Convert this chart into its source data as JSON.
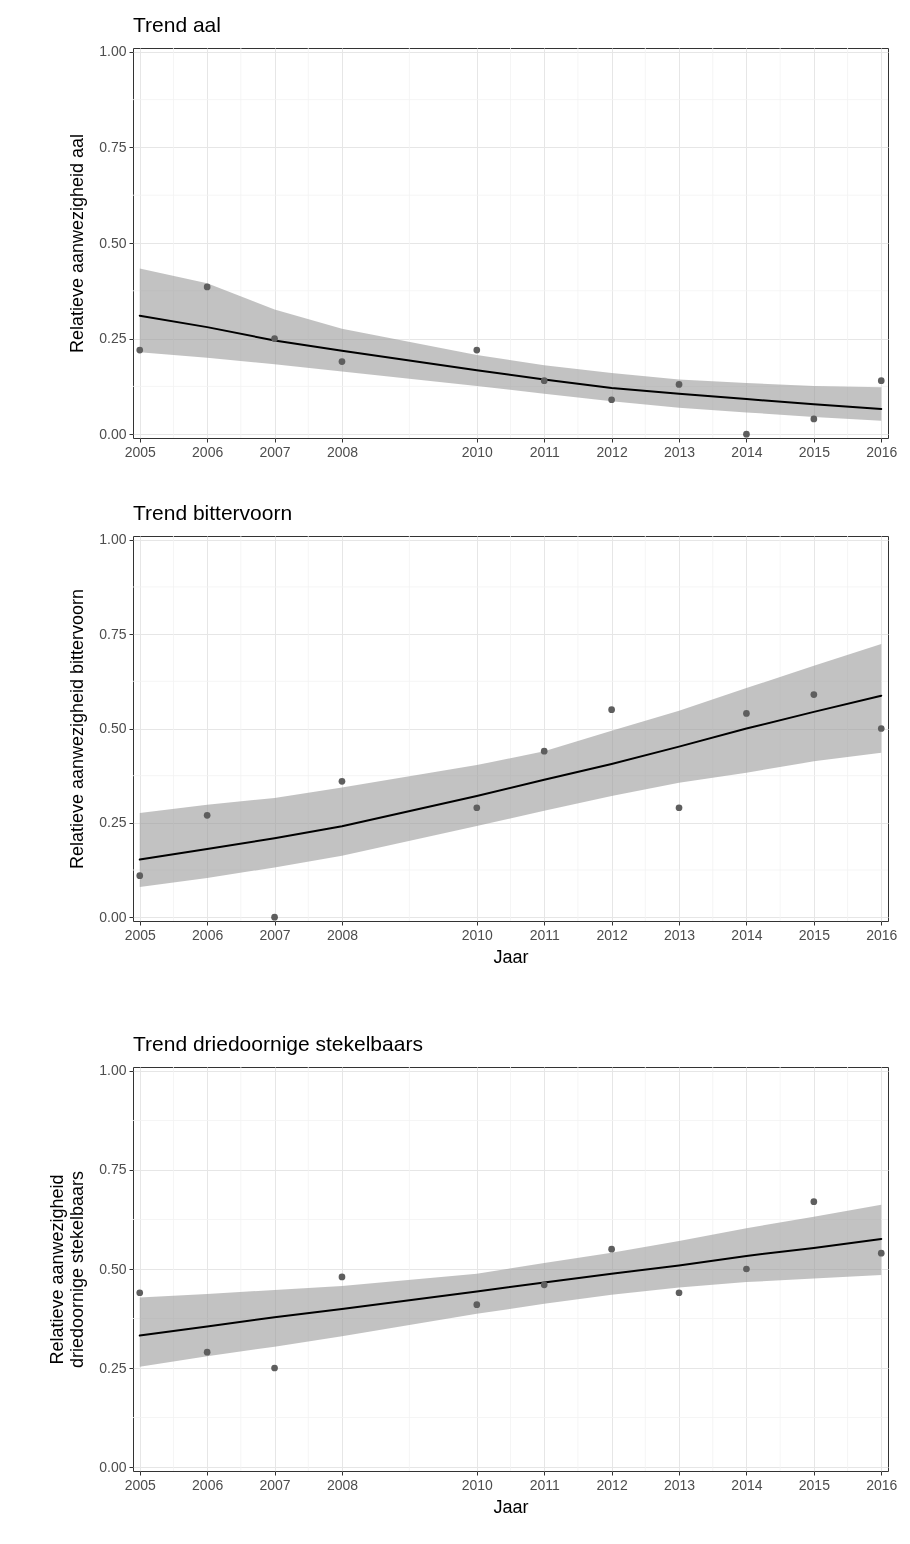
{
  "chart_data": [
    {
      "type": "scatter",
      "title": "Trend aal",
      "ylabel": "Relatieve aanwezigheid aal",
      "x": [
        2005,
        2006,
        2007,
        2008,
        2010,
        2011,
        2012,
        2013,
        2014,
        2015,
        2016
      ],
      "series": [
        {
          "type": "line",
          "color": "#000000",
          "line_style": "solid",
          "values": [
            0.31,
            0.28,
            0.245,
            0.218,
            0.167,
            0.143,
            0.121,
            0.106,
            0.092,
            0.078,
            0.066
          ],
          "lower": [
            0.214,
            0.2,
            0.183,
            0.164,
            0.126,
            0.106,
            0.086,
            0.069,
            0.057,
            0.045,
            0.035
          ],
          "upper": [
            0.433,
            0.395,
            0.326,
            0.276,
            0.207,
            0.18,
            0.16,
            0.143,
            0.134,
            0.126,
            0.123
          ]
        },
        {
          "color": "#5e5e5e",
          "marker": "circle",
          "values": [
            0.22,
            0.385,
            0.25,
            0.19,
            0.22,
            0.14,
            0.09,
            0.13,
            0.0,
            0.04,
            0.14
          ]
        }
      ],
      "xlim": [
        2004.9,
        2016.1
      ],
      "xticks": [
        2005,
        2006,
        2007,
        2008,
        2010,
        2011,
        2012,
        2013,
        2014,
        2015,
        2016
      ],
      "ylim": [
        -0.01,
        1.01
      ],
      "yticks": [
        {
          "value": 0,
          "label": "0.00"
        },
        {
          "value": 0.25,
          "label": "0.25"
        },
        {
          "value": 0.5,
          "label": "0.50"
        },
        {
          "value": 0.75,
          "label": "0.75"
        },
        {
          "value": 1,
          "label": "1.00"
        }
      ],
      "grid": true
    },
    {
      "type": "scatter",
      "title": "Trend bittervoorn",
      "xlabel": "Jaar",
      "ylabel": "Relatieve aanwezigheid bittervoorn",
      "x": [
        2005,
        2006,
        2007,
        2008,
        2010,
        2011,
        2012,
        2013,
        2014,
        2015,
        2016
      ],
      "series": [
        {
          "type": "line",
          "color": "#000000",
          "line_style": "solid",
          "values": [
            0.153,
            0.181,
            0.209,
            0.241,
            0.321,
            0.364,
            0.406,
            0.452,
            0.5,
            0.544,
            0.587
          ],
          "lower": [
            0.08,
            0.104,
            0.132,
            0.163,
            0.242,
            0.282,
            0.321,
            0.356,
            0.383,
            0.413,
            0.436
          ],
          "upper": [
            0.276,
            0.298,
            0.316,
            0.344,
            0.403,
            0.44,
            0.494,
            0.547,
            0.607,
            0.666,
            0.724
          ]
        },
        {
          "color": "#5e5e5e",
          "marker": "circle",
          "values": [
            0.11,
            0.27,
            0.0,
            0.36,
            0.29,
            0.44,
            0.55,
            0.29,
            0.54,
            0.59,
            0.5
          ]
        }
      ],
      "xlim": [
        2004.9,
        2016.1
      ],
      "xticks": [
        2005,
        2006,
        2007,
        2008,
        2010,
        2011,
        2012,
        2013,
        2014,
        2015,
        2016
      ],
      "ylim": [
        -0.01,
        1.01
      ],
      "yticks": [
        {
          "value": 0,
          "label": "0.00"
        },
        {
          "value": 0.25,
          "label": "0.25"
        },
        {
          "value": 0.5,
          "label": "0.50"
        },
        {
          "value": 0.75,
          "label": "0.75"
        },
        {
          "value": 1,
          "label": "1.00"
        }
      ],
      "grid": true
    },
    {
      "type": "scatter",
      "title": "Trend driedoornige stekelbaars",
      "xlabel": "Jaar",
      "ylabel": "Relatieve aanwezigheid\ndriedoornige stekelbaars",
      "x": [
        2005,
        2006,
        2007,
        2008,
        2010,
        2011,
        2012,
        2013,
        2014,
        2015,
        2016
      ],
      "series": [
        {
          "type": "line",
          "color": "#000000",
          "line_style": "solid",
          "values": [
            0.332,
            0.355,
            0.378,
            0.399,
            0.443,
            0.466,
            0.488,
            0.509,
            0.533,
            0.553,
            0.576
          ],
          "lower": [
            0.253,
            0.28,
            0.304,
            0.33,
            0.387,
            0.412,
            0.435,
            0.453,
            0.467,
            0.476,
            0.485
          ],
          "upper": [
            0.428,
            0.437,
            0.447,
            0.457,
            0.488,
            0.515,
            0.541,
            0.571,
            0.603,
            0.632,
            0.662
          ]
        },
        {
          "color": "#5e5e5e",
          "marker": "circle",
          "values": [
            0.44,
            0.29,
            0.25,
            0.48,
            0.41,
            0.46,
            0.55,
            0.44,
            0.5,
            0.67,
            0.54
          ]
        }
      ],
      "xlim": [
        2004.9,
        2016.1
      ],
      "xticks": [
        2005,
        2006,
        2007,
        2008,
        2010,
        2011,
        2012,
        2013,
        2014,
        2015,
        2016
      ],
      "ylim": [
        -0.01,
        1.01
      ],
      "yticks": [
        {
          "value": 0,
          "label": "0.00"
        },
        {
          "value": 0.25,
          "label": "0.25"
        },
        {
          "value": 0.5,
          "label": "0.50"
        },
        {
          "value": 0.75,
          "label": "0.75"
        },
        {
          "value": 1,
          "label": "1.00"
        }
      ],
      "grid": true
    }
  ]
}
